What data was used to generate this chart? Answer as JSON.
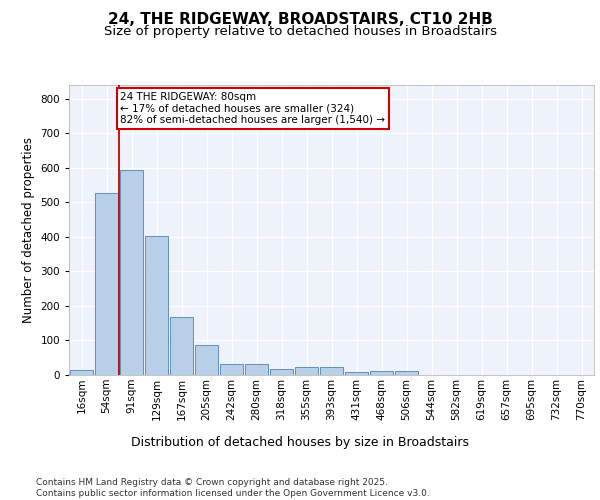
{
  "title": "24, THE RIDGEWAY, BROADSTAIRS, CT10 2HB",
  "subtitle": "Size of property relative to detached houses in Broadstairs",
  "xlabel": "Distribution of detached houses by size in Broadstairs",
  "ylabel": "Number of detached properties",
  "bar_labels": [
    "16sqm",
    "54sqm",
    "91sqm",
    "129sqm",
    "167sqm",
    "205sqm",
    "242sqm",
    "280sqm",
    "318sqm",
    "355sqm",
    "393sqm",
    "431sqm",
    "468sqm",
    "506sqm",
    "544sqm",
    "582sqm",
    "619sqm",
    "657sqm",
    "695sqm",
    "732sqm",
    "770sqm"
  ],
  "bar_values": [
    14,
    528,
    595,
    402,
    168,
    88,
    32,
    32,
    18,
    22,
    22,
    8,
    12,
    12,
    0,
    0,
    0,
    0,
    0,
    0,
    0
  ],
  "bar_color": "#b8cfe8",
  "bar_edge_color": "#6090c0",
  "annotation_box_text": "24 THE RIDGEWAY: 80sqm\n← 17% of detached houses are smaller (324)\n82% of semi-detached houses are larger (1,540) →",
  "vline_x": 1.5,
  "vline_color": "#cc0000",
  "annotation_rect_color": "#cc0000",
  "ylim": [
    0,
    840
  ],
  "yticks": [
    0,
    100,
    200,
    300,
    400,
    500,
    600,
    700,
    800
  ],
  "background_color": "#eef2fb",
  "grid_color": "#ffffff",
  "footer_text": "Contains HM Land Registry data © Crown copyright and database right 2025.\nContains public sector information licensed under the Open Government Licence v3.0.",
  "title_fontsize": 11,
  "subtitle_fontsize": 9.5,
  "ylabel_fontsize": 8.5,
  "xlabel_fontsize": 9,
  "tick_fontsize": 7.5,
  "annotation_fontsize": 7.5,
  "footer_fontsize": 6.5
}
